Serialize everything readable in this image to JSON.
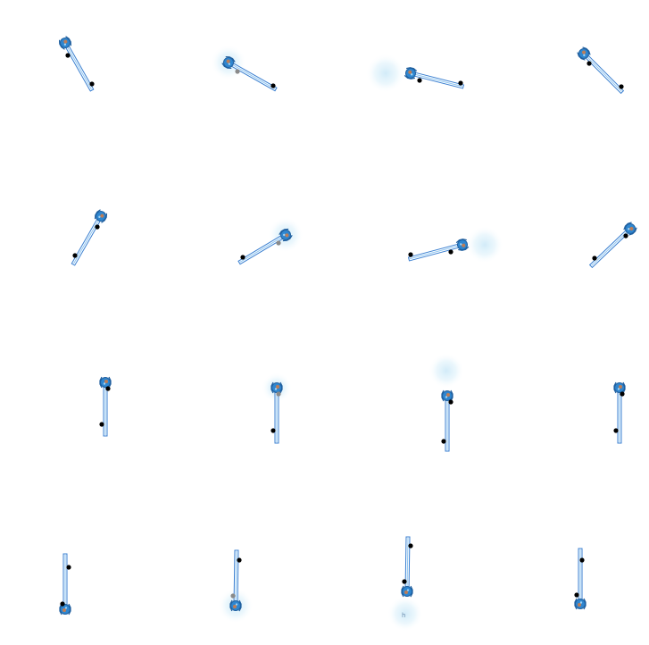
{
  "colors": {
    "rod_stroke": "#3a7fd0",
    "rod_inner": "#8ec6f2",
    "gripper_body": "#2f86cf",
    "gripper_dark": "#1f5f9f",
    "gripper_accent": "#e07a3a",
    "glow": "#cfeaf8",
    "marker": "#000000",
    "marker_dim": "#8a8a8a"
  },
  "icons": {
    "gripper": "gripper-icon",
    "marker": "target-dot-icon",
    "highlight": "glow-highlight"
  },
  "small_label": "h",
  "grid": {
    "rows": 4,
    "cols": 4
  }
}
